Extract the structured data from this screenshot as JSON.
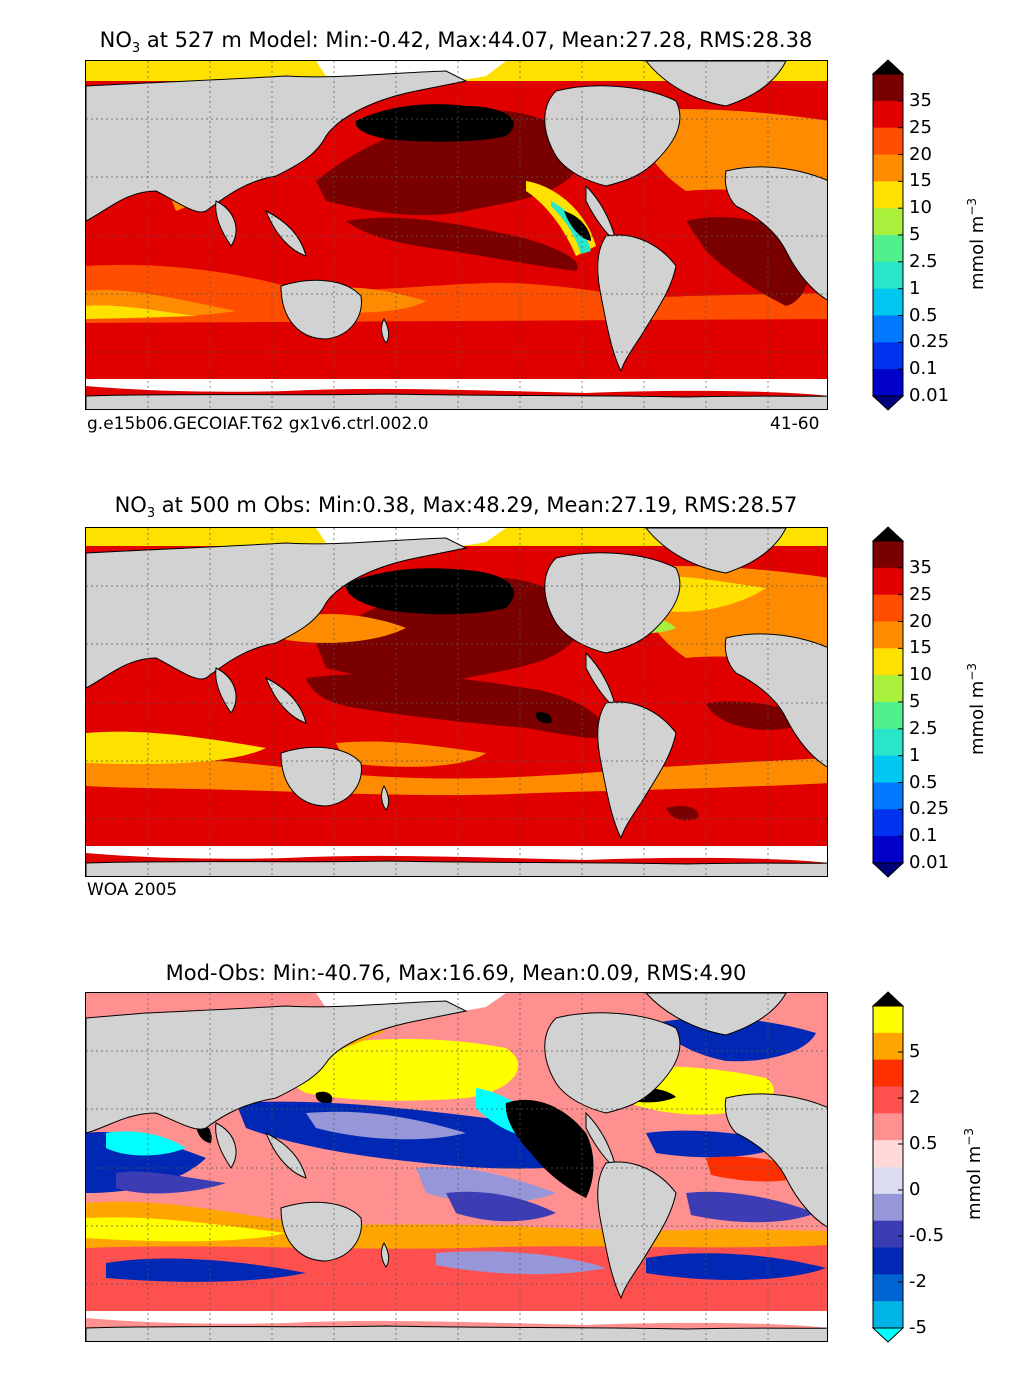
{
  "figure": {
    "background": "#ffffff",
    "land_color": "#d2d2d2",
    "ice_color": "#ffffff",
    "grid_color": "#555555"
  },
  "panels": [
    {
      "id": "model",
      "title_species": "NO",
      "title_subscript": "3",
      "title_rest": " at 527 m Model: Min:-0.42, Max:44.07, Mean:27.28, RMS:28.38",
      "caption_left": "g.e15b06.GECOIAF.T62 gx1v6.ctrl.002.0",
      "caption_right": "41-60"
    },
    {
      "id": "obs",
      "title_species": "NO",
      "title_subscript": "3",
      "title_rest": " at 500 m Obs: Min:0.38, Max:48.29, Mean:27.19, RMS:28.57",
      "caption_left": "WOA 2005",
      "caption_right": ""
    },
    {
      "id": "diff",
      "title_species": "",
      "title_subscript": "",
      "title_rest": "Mod-Obs: Min:-40.76, Max:16.69, Mean:0.09, RMS:4.90",
      "caption_left": "",
      "caption_right": ""
    }
  ],
  "chart_data": [
    {
      "type": "heatmap",
      "title": "NO3 at 527 m Model: Min:-0.42, Max:44.07, Mean:27.28, RMS:28.38",
      "statistics": {
        "min": -0.42,
        "max": 44.07,
        "mean": 27.28,
        "rms": 28.38
      },
      "depth_m": 527,
      "source": "g.e15b06.GECOIAF.T62 gx1v6.ctrl.002.0",
      "years": "41-60",
      "colorbar": {
        "unit_main": "mmol m",
        "unit_sup": "−3",
        "tick_labels": [
          "35",
          "25",
          "20",
          "15",
          "10",
          "5",
          "2.5",
          "1",
          "0.5",
          "0.25",
          "0.1",
          "0.01"
        ],
        "colors": [
          "#000000",
          "#7a0000",
          "#e10000",
          "#ff4e00",
          "#ff8c00",
          "#ffe100",
          "#a8f03c",
          "#50f08c",
          "#28e6c8",
          "#00c8f0",
          "#0078ff",
          "#0032f0",
          "#0000c8",
          "#00007a"
        ]
      }
    },
    {
      "type": "heatmap",
      "title": "NO3 at 500 m Obs: Min:0.38, Max:48.29, Mean:27.19, RMS:28.57",
      "statistics": {
        "min": 0.38,
        "max": 48.29,
        "mean": 27.19,
        "rms": 28.57
      },
      "depth_m": 500,
      "source": "WOA 2005",
      "colorbar": {
        "unit_main": "mmol m",
        "unit_sup": "−3",
        "tick_labels": [
          "35",
          "25",
          "20",
          "15",
          "10",
          "5",
          "2.5",
          "1",
          "0.5",
          "0.25",
          "0.1",
          "0.01"
        ],
        "colors": [
          "#000000",
          "#7a0000",
          "#e10000",
          "#ff4e00",
          "#ff8c00",
          "#ffe100",
          "#a8f03c",
          "#50f08c",
          "#28e6c8",
          "#00c8f0",
          "#0078ff",
          "#0032f0",
          "#0000c8",
          "#00007a"
        ]
      }
    },
    {
      "type": "heatmap",
      "title": "Mod-Obs: Min:-40.76, Max:16.69, Mean:0.09, RMS:4.90",
      "statistics": {
        "min": -40.76,
        "max": 16.69,
        "mean": 0.09,
        "rms": 4.9
      },
      "colorbar": {
        "unit_main": "mmol m",
        "unit_sup": "−3",
        "tick_labels": [
          "5",
          "2",
          "0.5",
          "0",
          "-0.5",
          "-2",
          "-5"
        ],
        "colors": [
          "#000000",
          "#ffff00",
          "#ffa500",
          "#ff3000",
          "#ff5050",
          "#ff9090",
          "#ffd8d8",
          "#dcdcf0",
          "#9696d8",
          "#3c3cb4",
          "#0028b4",
          "#0064d2",
          "#00b4e6",
          "#00ffff"
        ]
      }
    }
  ]
}
